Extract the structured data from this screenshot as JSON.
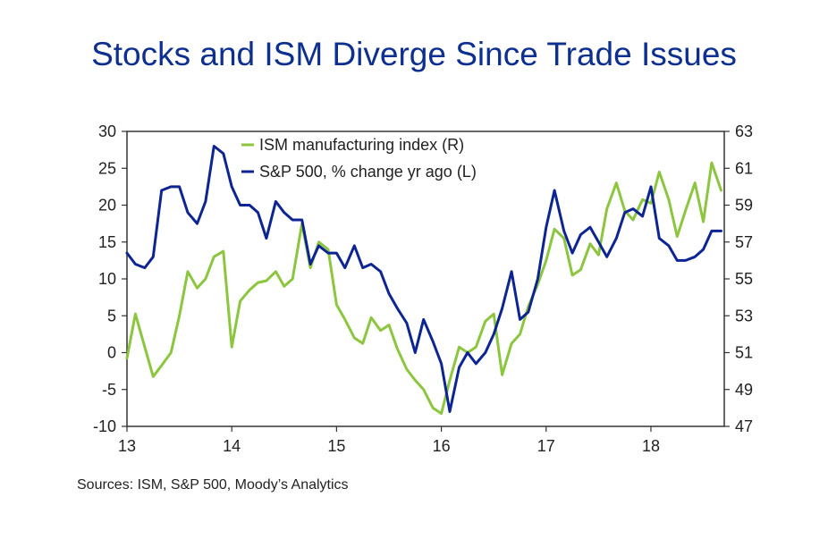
{
  "chart_data": {
    "type": "line",
    "title": "Stocks and ISM Diverge Since Trade Issues",
    "source": "Sources: ISM, S&P 500, Moody’s Analytics",
    "x_ticks": [
      {
        "label": "13",
        "x": 13
      },
      {
        "label": "14",
        "x": 14
      },
      {
        "label": "15",
        "x": 15
      },
      {
        "label": "16",
        "x": 16
      },
      {
        "label": "17",
        "x": 17
      },
      {
        "label": "18",
        "x": 18
      }
    ],
    "xlim": [
      13,
      18.7
    ],
    "y_left": {
      "lim": [
        -10,
        30
      ],
      "ticks": [
        "-10",
        "-5",
        "0",
        "5",
        "10",
        "15",
        "20",
        "25",
        "30"
      ]
    },
    "y_right": {
      "lim": [
        47,
        63
      ],
      "ticks": [
        "47",
        "49",
        "51",
        "53",
        "55",
        "57",
        "59",
        "61",
        "63"
      ]
    },
    "legend_position": "top-center",
    "colors": {
      "ism": "#8cc63f",
      "sp": "#0d2593",
      "title": "#0d2f8f"
    },
    "series": [
      {
        "name": "ISM manufacturing index (R)",
        "axis": "right",
        "color": "#8cc63f",
        "points": [
          [
            13.0,
            50.7
          ],
          [
            13.08,
            53.1
          ],
          [
            13.17,
            51.3
          ],
          [
            13.25,
            49.7
          ],
          [
            13.33,
            50.3
          ],
          [
            13.42,
            51.0
          ],
          [
            13.5,
            53.0
          ],
          [
            13.58,
            55.4
          ],
          [
            13.67,
            54.5
          ],
          [
            13.75,
            55.0
          ],
          [
            13.83,
            56.2
          ],
          [
            13.92,
            56.5
          ],
          [
            14.0,
            51.3
          ],
          [
            14.08,
            53.8
          ],
          [
            14.17,
            54.4
          ],
          [
            14.25,
            54.8
          ],
          [
            14.33,
            54.9
          ],
          [
            14.42,
            55.4
          ],
          [
            14.5,
            54.6
          ],
          [
            14.58,
            55.0
          ],
          [
            14.67,
            58.0
          ],
          [
            14.75,
            55.6
          ],
          [
            14.83,
            57.0
          ],
          [
            14.92,
            56.6
          ],
          [
            15.0,
            53.6
          ],
          [
            15.08,
            52.8
          ],
          [
            15.17,
            51.8
          ],
          [
            15.25,
            51.5
          ],
          [
            15.33,
            52.9
          ],
          [
            15.42,
            52.2
          ],
          [
            15.5,
            52.5
          ],
          [
            15.58,
            51.2
          ],
          [
            15.67,
            50.1
          ],
          [
            15.75,
            49.5
          ],
          [
            15.83,
            49.0
          ],
          [
            15.92,
            48.0
          ],
          [
            16.0,
            47.7
          ],
          [
            16.08,
            49.5
          ],
          [
            16.17,
            51.3
          ],
          [
            16.25,
            51.0
          ],
          [
            16.33,
            51.3
          ],
          [
            16.42,
            52.7
          ],
          [
            16.5,
            53.1
          ],
          [
            16.58,
            49.8
          ],
          [
            16.67,
            51.5
          ],
          [
            16.75,
            52.0
          ],
          [
            16.83,
            53.5
          ],
          [
            16.92,
            54.7
          ],
          [
            17.0,
            56.0
          ],
          [
            17.08,
            57.7
          ],
          [
            17.17,
            57.2
          ],
          [
            17.25,
            55.2
          ],
          [
            17.33,
            55.5
          ],
          [
            17.42,
            56.9
          ],
          [
            17.5,
            56.3
          ],
          [
            17.58,
            58.8
          ],
          [
            17.67,
            60.2
          ],
          [
            17.75,
            58.7
          ],
          [
            17.83,
            58.2
          ],
          [
            17.92,
            59.3
          ],
          [
            18.0,
            59.1
          ],
          [
            18.08,
            60.8
          ],
          [
            18.17,
            59.3
          ],
          [
            18.25,
            57.3
          ],
          [
            18.33,
            58.7
          ],
          [
            18.42,
            60.2
          ],
          [
            18.5,
            58.1
          ],
          [
            18.58,
            61.3
          ],
          [
            18.67,
            59.8
          ]
        ]
      },
      {
        "name": "S&P 500, % change yr ago (L)",
        "axis": "left",
        "color": "#0d2593",
        "points": [
          [
            13.0,
            13.5
          ],
          [
            13.08,
            12.0
          ],
          [
            13.17,
            11.5
          ],
          [
            13.25,
            13.0
          ],
          [
            13.33,
            22.0
          ],
          [
            13.42,
            22.5
          ],
          [
            13.5,
            22.5
          ],
          [
            13.58,
            19.0
          ],
          [
            13.67,
            17.5
          ],
          [
            13.75,
            20.5
          ],
          [
            13.83,
            28.0
          ],
          [
            13.92,
            27.0
          ],
          [
            14.0,
            22.5
          ],
          [
            14.08,
            20.0
          ],
          [
            14.17,
            20.0
          ],
          [
            14.25,
            19.0
          ],
          [
            14.33,
            15.5
          ],
          [
            14.42,
            20.5
          ],
          [
            14.5,
            19.0
          ],
          [
            14.58,
            18.0
          ],
          [
            14.67,
            18.0
          ],
          [
            14.75,
            12.0
          ],
          [
            14.83,
            14.5
          ],
          [
            14.92,
            13.5
          ],
          [
            15.0,
            13.5
          ],
          [
            15.08,
            11.5
          ],
          [
            15.17,
            14.5
          ],
          [
            15.25,
            11.5
          ],
          [
            15.33,
            12.0
          ],
          [
            15.42,
            11.0
          ],
          [
            15.5,
            8.0
          ],
          [
            15.58,
            6.0
          ],
          [
            15.67,
            4.0
          ],
          [
            15.75,
            0.0
          ],
          [
            15.83,
            4.5
          ],
          [
            15.92,
            1.5
          ],
          [
            16.0,
            -1.5
          ],
          [
            16.08,
            -8.0
          ],
          [
            16.17,
            -2.0
          ],
          [
            16.25,
            0.0
          ],
          [
            16.33,
            -1.5
          ],
          [
            16.42,
            0.0
          ],
          [
            16.5,
            2.5
          ],
          [
            16.58,
            6.0
          ],
          [
            16.67,
            11.0
          ],
          [
            16.75,
            4.5
          ],
          [
            16.83,
            5.5
          ],
          [
            16.92,
            10.0
          ],
          [
            17.0,
            17.0
          ],
          [
            17.08,
            22.0
          ],
          [
            17.17,
            16.5
          ],
          [
            17.25,
            13.5
          ],
          [
            17.33,
            16.0
          ],
          [
            17.42,
            17.0
          ],
          [
            17.5,
            15.0
          ],
          [
            17.58,
            13.0
          ],
          [
            17.67,
            15.5
          ],
          [
            17.75,
            19.0
          ],
          [
            17.83,
            19.5
          ],
          [
            17.92,
            18.5
          ],
          [
            18.0,
            22.5
          ],
          [
            18.08,
            15.5
          ],
          [
            18.17,
            14.5
          ],
          [
            18.25,
            12.5
          ],
          [
            18.33,
            12.5
          ],
          [
            18.42,
            13.0
          ],
          [
            18.5,
            14.0
          ],
          [
            18.58,
            16.5
          ],
          [
            18.67,
            16.5
          ]
        ]
      }
    ]
  }
}
